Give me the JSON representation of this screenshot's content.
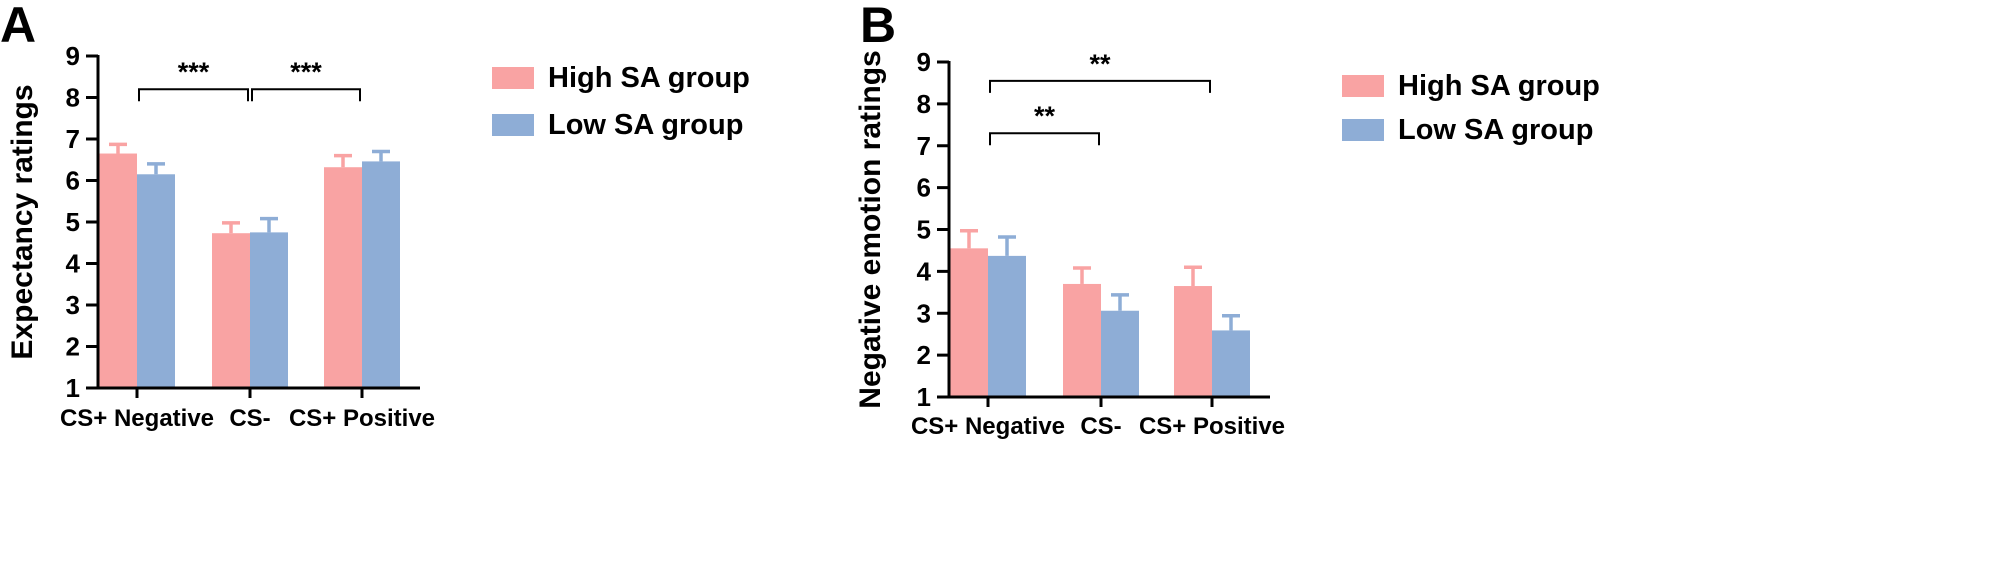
{
  "chart_data": [
    {
      "panel": "A",
      "type": "bar",
      "title": "",
      "xlabel": "",
      "ylabel": "Expectancy ratings",
      "ylim": [
        1,
        9
      ],
      "yticks": [
        "1",
        "2",
        "3",
        "4",
        "5",
        "6",
        "7",
        "8",
        "9"
      ],
      "categories": [
        "CS+ Negative",
        "CS-",
        "CS+ Positive"
      ],
      "series": [
        {
          "name": "High SA group",
          "color": "#f9a3a3",
          "values": [
            6.65,
            4.73,
            6.32
          ],
          "errors": [
            0.22,
            0.25,
            0.28
          ]
        },
        {
          "name": "Low SA group",
          "color": "#8eadd6",
          "values": [
            6.15,
            4.75,
            6.46
          ],
          "errors": [
            0.25,
            0.33,
            0.24
          ]
        }
      ],
      "significance": [
        {
          "from": 0,
          "to": 1,
          "label": "***",
          "y": 8.2
        },
        {
          "from": 1,
          "to": 2,
          "label": "***",
          "y": 8.2
        }
      ],
      "legend_position": "right"
    },
    {
      "panel": "B",
      "type": "bar",
      "title": "",
      "xlabel": "",
      "ylabel": "Negative emotion ratings",
      "ylim": [
        1,
        9
      ],
      "yticks": [
        "1",
        "2",
        "3",
        "4",
        "5",
        "6",
        "7",
        "8",
        "9"
      ],
      "categories": [
        "CS+ Negative",
        "CS-",
        "CS+ Positive"
      ],
      "series": [
        {
          "name": "High SA group",
          "color": "#f9a3a3",
          "values": [
            4.55,
            3.7,
            3.65
          ],
          "errors": [
            0.42,
            0.38,
            0.45
          ]
        },
        {
          "name": "Low SA group",
          "color": "#8eadd6",
          "values": [
            4.37,
            3.06,
            2.59
          ],
          "errors": [
            0.45,
            0.38,
            0.35
          ]
        }
      ],
      "significance": [
        {
          "from": 0,
          "to": 2,
          "label": "**",
          "y": 8.55
        },
        {
          "from": 0,
          "to": 1,
          "label": "**",
          "y": 7.3
        }
      ],
      "legend_position": "right"
    }
  ]
}
